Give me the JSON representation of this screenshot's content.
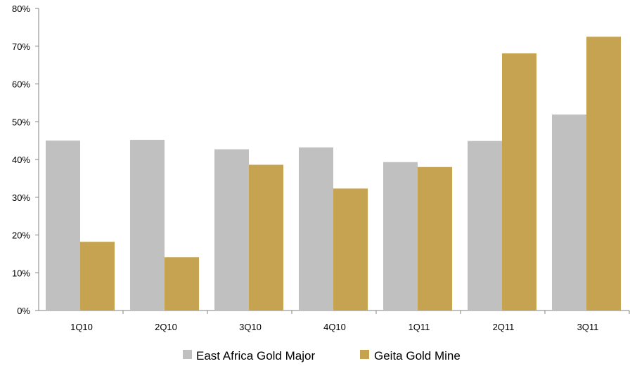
{
  "chart_data": {
    "type": "bar",
    "categories": [
      "1Q10",
      "2Q10",
      "3Q10",
      "4Q10",
      "1Q11",
      "2Q11",
      "3Q11"
    ],
    "series": [
      {
        "name": "East Africa Gold Major",
        "color": "#c0c0c0",
        "values": [
          45,
          45.2,
          42.7,
          43.2,
          39.3,
          44.9,
          51.9
        ]
      },
      {
        "name": "Geita Gold Mine",
        "color": "#c6a351",
        "values": [
          18.2,
          14.1,
          38.6,
          32.3,
          38.0,
          68.1,
          72.5
        ]
      }
    ],
    "ylim": [
      0,
      80
    ],
    "yticks": [
      0,
      10,
      20,
      30,
      40,
      50,
      60,
      70,
      80
    ],
    "ytick_labels": [
      "0%",
      "10%",
      "20%",
      "30%",
      "40%",
      "50%",
      "60%",
      "70%",
      "80%"
    ],
    "title": "",
    "xlabel": "",
    "ylabel": "",
    "grid": false,
    "legend_position": "bottom-center"
  }
}
